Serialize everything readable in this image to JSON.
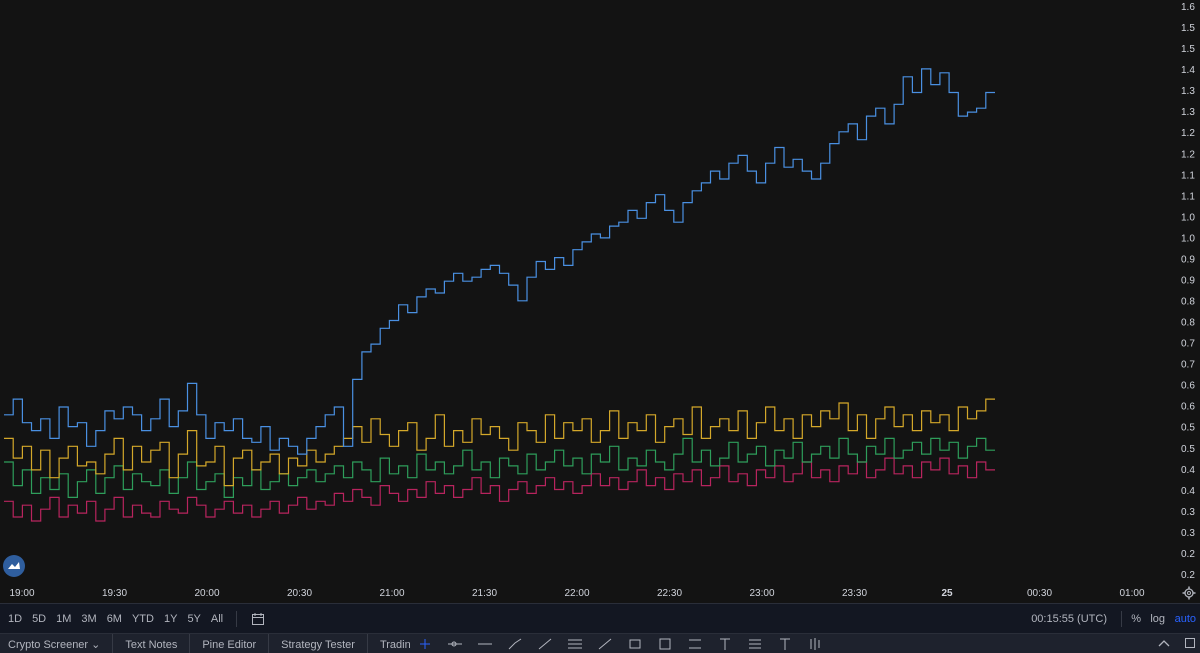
{
  "chart_data": {
    "type": "line",
    "style": "step",
    "title": "",
    "xlabel": "",
    "ylabel": "",
    "ylim": [
      0.15,
      1.6
    ],
    "yscale": "linear",
    "grid": false,
    "x_tick_labels": [
      "19:00",
      "19:30",
      "20:00",
      "20:30",
      "21:00",
      "21:30",
      "22:00",
      "22:30",
      "23:00",
      "23:30",
      "25",
      "00:30",
      "01:00"
    ],
    "y_tick_labels": [
      "1.6",
      "1.5",
      "1.5",
      "1.4",
      "1.3",
      "1.3",
      "1.2",
      "1.2",
      "1.1",
      "1.1",
      "1.0",
      "1.0",
      "0.9",
      "0.9",
      "0.8",
      "0.8",
      "0.7",
      "0.7",
      "0.6",
      "0.6",
      "0.5",
      "0.5",
      "0.4",
      "0.4",
      "0.3",
      "0.3",
      "0.2",
      "0.2"
    ],
    "series": [
      {
        "color": "#4a90e2",
        "values": [
          0.56,
          0.6,
          0.54,
          0.52,
          0.55,
          0.5,
          0.58,
          0.53,
          0.54,
          0.48,
          0.52,
          0.57,
          0.55,
          0.58,
          0.56,
          0.52,
          0.55,
          0.6,
          0.53,
          0.57,
          0.64,
          0.56,
          0.5,
          0.54,
          0.52,
          0.55,
          0.5,
          0.49,
          0.53,
          0.47,
          0.5,
          0.48,
          0.46,
          0.5,
          0.53,
          0.56,
          0.58,
          0.48,
          0.65,
          0.72,
          0.74,
          0.78,
          0.8,
          0.84,
          0.82,
          0.86,
          0.88,
          0.87,
          0.9,
          0.92,
          0.9,
          0.91,
          0.93,
          0.94,
          0.92,
          0.89,
          0.85,
          0.91,
          0.95,
          0.93,
          0.96,
          0.94,
          0.98,
          1.0,
          1.02,
          1.01,
          1.04,
          1.05,
          1.08,
          1.06,
          1.1,
          1.12,
          1.08,
          1.05,
          1.1,
          1.13,
          1.15,
          1.18,
          1.16,
          1.2,
          1.22,
          1.18,
          1.15,
          1.2,
          1.24,
          1.19,
          1.21,
          1.18,
          1.16,
          1.2,
          1.25,
          1.28,
          1.3,
          1.26,
          1.32,
          1.34,
          1.3,
          1.35,
          1.42,
          1.38,
          1.44,
          1.4,
          1.43,
          1.38,
          1.32,
          1.33,
          1.34,
          1.38
        ]
      },
      {
        "color": "#d4a82a",
        "values": [
          0.5,
          0.45,
          0.48,
          0.42,
          0.47,
          0.4,
          0.45,
          0.48,
          0.43,
          0.44,
          0.41,
          0.46,
          0.5,
          0.42,
          0.48,
          0.44,
          0.47,
          0.49,
          0.4,
          0.46,
          0.52,
          0.43,
          0.44,
          0.48,
          0.38,
          0.45,
          0.47,
          0.42,
          0.44,
          0.46,
          0.41,
          0.45,
          0.43,
          0.47,
          0.44,
          0.46,
          0.48,
          0.5,
          0.53,
          0.49,
          0.55,
          0.51,
          0.48,
          0.52,
          0.54,
          0.47,
          0.5,
          0.56,
          0.48,
          0.52,
          0.49,
          0.55,
          0.51,
          0.53,
          0.5,
          0.47,
          0.54,
          0.52,
          0.49,
          0.56,
          0.5,
          0.54,
          0.52,
          0.55,
          0.49,
          0.52,
          0.57,
          0.5,
          0.54,
          0.52,
          0.56,
          0.49,
          0.53,
          0.55,
          0.51,
          0.58,
          0.5,
          0.53,
          0.55,
          0.52,
          0.57,
          0.5,
          0.54,
          0.58,
          0.52,
          0.55,
          0.5,
          0.56,
          0.53,
          0.57,
          0.55,
          0.59,
          0.52,
          0.56,
          0.5,
          0.55,
          0.58,
          0.53,
          0.56,
          0.52,
          0.57,
          0.54,
          0.56,
          0.52,
          0.58,
          0.55,
          0.57,
          0.6
        ]
      },
      {
        "color": "#2e9e5b",
        "values": [
          0.44,
          0.38,
          0.42,
          0.36,
          0.4,
          0.37,
          0.41,
          0.35,
          0.39,
          0.42,
          0.36,
          0.4,
          0.43,
          0.37,
          0.41,
          0.39,
          0.38,
          0.42,
          0.36,
          0.4,
          0.44,
          0.37,
          0.39,
          0.41,
          0.35,
          0.4,
          0.38,
          0.42,
          0.37,
          0.39,
          0.41,
          0.38,
          0.4,
          0.42,
          0.39,
          0.41,
          0.43,
          0.4,
          0.44,
          0.42,
          0.39,
          0.45,
          0.41,
          0.43,
          0.4,
          0.46,
          0.42,
          0.44,
          0.41,
          0.43,
          0.47,
          0.42,
          0.44,
          0.4,
          0.45,
          0.43,
          0.41,
          0.46,
          0.42,
          0.44,
          0.47,
          0.43,
          0.45,
          0.41,
          0.46,
          0.44,
          0.48,
          0.42,
          0.45,
          0.43,
          0.47,
          0.44,
          0.42,
          0.46,
          0.5,
          0.44,
          0.47,
          0.43,
          0.45,
          0.49,
          0.44,
          0.46,
          0.48,
          0.43,
          0.47,
          0.45,
          0.49,
          0.44,
          0.46,
          0.48,
          0.45,
          0.5,
          0.46,
          0.44,
          0.48,
          0.46,
          0.5,
          0.45,
          0.47,
          0.49,
          0.46,
          0.5,
          0.47,
          0.49,
          0.45,
          0.48,
          0.5,
          0.47
        ]
      },
      {
        "color": "#b8245e",
        "values": [
          0.34,
          0.3,
          0.33,
          0.29,
          0.32,
          0.35,
          0.3,
          0.33,
          0.31,
          0.34,
          0.29,
          0.32,
          0.35,
          0.3,
          0.33,
          0.31,
          0.3,
          0.34,
          0.32,
          0.31,
          0.35,
          0.33,
          0.3,
          0.32,
          0.34,
          0.31,
          0.33,
          0.3,
          0.32,
          0.34,
          0.31,
          0.33,
          0.35,
          0.32,
          0.34,
          0.33,
          0.36,
          0.34,
          0.37,
          0.35,
          0.33,
          0.38,
          0.36,
          0.34,
          0.37,
          0.35,
          0.39,
          0.36,
          0.38,
          0.35,
          0.37,
          0.4,
          0.36,
          0.38,
          0.34,
          0.37,
          0.39,
          0.36,
          0.38,
          0.4,
          0.37,
          0.39,
          0.36,
          0.38,
          0.41,
          0.38,
          0.4,
          0.37,
          0.39,
          0.42,
          0.38,
          0.4,
          0.37,
          0.41,
          0.39,
          0.42,
          0.38,
          0.4,
          0.43,
          0.39,
          0.41,
          0.38,
          0.42,
          0.4,
          0.43,
          0.39,
          0.41,
          0.44,
          0.4,
          0.42,
          0.39,
          0.43,
          0.41,
          0.44,
          0.4,
          0.42,
          0.45,
          0.41,
          0.43,
          0.4,
          0.44,
          0.42,
          0.45,
          0.41,
          0.43,
          0.4,
          0.44,
          0.42
        ]
      }
    ]
  },
  "icons": {
    "logo": "tradingview-logo-icon",
    "settings": "gear-icon",
    "compare": "calendar-range-icon"
  },
  "toolbar": {
    "ranges": [
      "1D",
      "5D",
      "1M",
      "3M",
      "6M",
      "YTD",
      "1Y",
      "5Y",
      "All"
    ],
    "clock": "00:15:55 (UTC)",
    "percent": "%",
    "log": "log",
    "auto": "auto"
  },
  "tabs": [
    "Crypto Screener",
    "Text Notes",
    "Pine Editor",
    "Strategy Tester",
    "Trading Pa"
  ]
}
